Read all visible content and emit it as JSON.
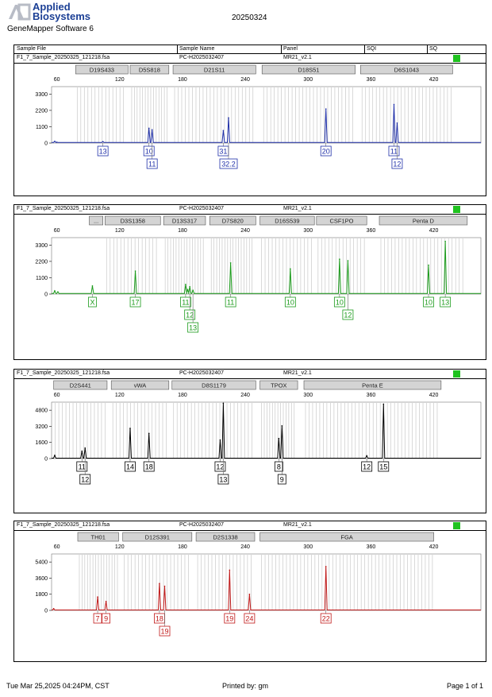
{
  "header": {
    "brand_line1": "Applied",
    "brand_line2": "Biosystems",
    "software": "GeneMapper Software 6",
    "date": "20250324"
  },
  "columns": {
    "sample_file": "Sample File",
    "sample_name": "Sample Name",
    "panel": "Panel",
    "sqi": "SQI",
    "sq": "SQ"
  },
  "footer": {
    "timestamp": "Tue Mar 25,2025 04:24PM, CST",
    "printed_by": "Printed by: gm",
    "page": "Page 1 of 1"
  },
  "chart_data": [
    {
      "type": "electropherogram",
      "sample_file": "F1_7_Sample_20250325_121218.fsa",
      "sample_name": "PC-H2025032407",
      "panel": "MR21_v2.1",
      "dye_color": "#1f2fa8",
      "x_ticks": [
        60,
        120,
        180,
        240,
        300,
        360,
        420
      ],
      "y_ticks": [
        0,
        1100,
        2200,
        3300
      ],
      "xlim": [
        55,
        465
      ],
      "ylim": [
        0,
        3800
      ],
      "markers": [
        {
          "name": "D19S433",
          "start": 78,
          "end": 128
        },
        {
          "name": "D5S818",
          "start": 130,
          "end": 167
        },
        {
          "name": "D21S11",
          "start": 171,
          "end": 250
        },
        {
          "name": "D18S51",
          "start": 256,
          "end": 345
        },
        {
          "name": "D6S1043",
          "start": 350,
          "end": 438
        }
      ],
      "peaks": [
        {
          "x": 58,
          "y": 120
        },
        {
          "x": 60,
          "y": 60
        },
        {
          "x": 104,
          "y": 100
        },
        {
          "x": 148,
          "y": 1000
        },
        {
          "x": 151,
          "y": 900
        },
        {
          "x": 219,
          "y": 850
        },
        {
          "x": 224,
          "y": 1700
        },
        {
          "x": 317,
          "y": 2300
        },
        {
          "x": 382,
          "y": 2600
        },
        {
          "x": 385,
          "y": 1350
        }
      ],
      "allele_calls": [
        {
          "label": "13",
          "x": 104,
          "row": 0
        },
        {
          "label": "10",
          "x": 148,
          "row": 0
        },
        {
          "label": "11",
          "x": 151,
          "row": 1
        },
        {
          "label": "31",
          "x": 219,
          "row": 0
        },
        {
          "label": "32.2",
          "x": 224,
          "row": 1
        },
        {
          "label": "20",
          "x": 317,
          "row": 0
        },
        {
          "label": "11",
          "x": 382,
          "row": 0
        },
        {
          "label": "12",
          "x": 385,
          "row": 1
        }
      ]
    },
    {
      "type": "electropherogram",
      "sample_file": "F1_7_Sample_20250325_121218.fsa",
      "sample_name": "PC-H2025032407",
      "panel": "MR21_v2.1",
      "dye_color": "#1a9a1a",
      "x_ticks": [
        60,
        120,
        180,
        240,
        300,
        360,
        420
      ],
      "y_ticks": [
        0,
        1100,
        2200,
        3300
      ],
      "xlim": [
        55,
        465
      ],
      "ylim": [
        0,
        3800
      ],
      "markers": [
        {
          "name": "...",
          "start": 91,
          "end": 104
        },
        {
          "name": "D3S1358",
          "start": 106,
          "end": 159
        },
        {
          "name": "D13S317",
          "start": 162,
          "end": 202
        },
        {
          "name": "D7S820",
          "start": 206,
          "end": 250
        },
        {
          "name": "D16S539",
          "start": 254,
          "end": 306
        },
        {
          "name": "CSF1PO",
          "start": 308,
          "end": 356
        },
        {
          "name": "Penta D",
          "start": 368,
          "end": 452
        }
      ],
      "peaks": [
        {
          "x": 58,
          "y": 220
        },
        {
          "x": 61,
          "y": 150
        },
        {
          "x": 94,
          "y": 550
        },
        {
          "x": 135,
          "y": 1550
        },
        {
          "x": 183,
          "y": 650
        },
        {
          "x": 185,
          "y": 300
        },
        {
          "x": 187,
          "y": 500
        },
        {
          "x": 190,
          "y": 250
        },
        {
          "x": 226,
          "y": 2100
        },
        {
          "x": 283,
          "y": 1700
        },
        {
          "x": 330,
          "y": 2350
        },
        {
          "x": 338,
          "y": 2250
        },
        {
          "x": 415,
          "y": 1950
        },
        {
          "x": 431,
          "y": 3550
        }
      ],
      "allele_calls": [
        {
          "label": "X",
          "x": 94,
          "row": 0
        },
        {
          "label": "17",
          "x": 135,
          "row": 0
        },
        {
          "label": "11",
          "x": 183,
          "row": 0
        },
        {
          "label": "12",
          "x": 187,
          "row": 1
        },
        {
          "label": "13",
          "x": 190,
          "row": 2
        },
        {
          "label": "11",
          "x": 226,
          "row": 0
        },
        {
          "label": "10",
          "x": 283,
          "row": 0
        },
        {
          "label": "10",
          "x": 330,
          "row": 0
        },
        {
          "label": "12",
          "x": 338,
          "row": 1
        },
        {
          "label": "10",
          "x": 415,
          "row": 0
        },
        {
          "label": "13",
          "x": 431,
          "row": 0
        }
      ]
    },
    {
      "type": "electropherogram",
      "sample_file": "F1_7_Sample_20250325_121218.fsa",
      "sample_name": "PC-H2025032407",
      "panel": "MR21_v2.1",
      "dye_color": "#000000",
      "x_ticks": [
        60,
        120,
        180,
        240,
        300,
        360,
        420
      ],
      "y_ticks": [
        0,
        1600,
        3200,
        4800
      ],
      "xlim": [
        55,
        465
      ],
      "ylim": [
        0,
        5600
      ],
      "markers": [
        {
          "name": "D2S441",
          "start": 57,
          "end": 108
        },
        {
          "name": "vWA",
          "start": 112,
          "end": 167
        },
        {
          "name": "D8S1179",
          "start": 170,
          "end": 250
        },
        {
          "name": "TPOX",
          "start": 254,
          "end": 290
        },
        {
          "name": "Penta E",
          "start": 296,
          "end": 427
        }
      ],
      "peaks": [
        {
          "x": 58,
          "y": 320
        },
        {
          "x": 84,
          "y": 750
        },
        {
          "x": 87,
          "y": 1050
        },
        {
          "x": 130,
          "y": 3000
        },
        {
          "x": 148,
          "y": 2500
        },
        {
          "x": 216,
          "y": 1850
        },
        {
          "x": 219,
          "y": 5500
        },
        {
          "x": 272,
          "y": 2000
        },
        {
          "x": 275,
          "y": 3250
        },
        {
          "x": 356,
          "y": 280
        },
        {
          "x": 372,
          "y": 5400
        }
      ],
      "allele_calls": [
        {
          "label": "11",
          "x": 84,
          "row": 0
        },
        {
          "label": "12",
          "x": 87,
          "row": 1
        },
        {
          "label": "14",
          "x": 130,
          "row": 0
        },
        {
          "label": "18",
          "x": 148,
          "row": 0
        },
        {
          "label": "12",
          "x": 216,
          "row": 0
        },
        {
          "label": "13",
          "x": 219,
          "row": 1
        },
        {
          "label": "8",
          "x": 272,
          "row": 0
        },
        {
          "label": "9",
          "x": 275,
          "row": 1
        },
        {
          "label": "12",
          "x": 356,
          "row": 0
        },
        {
          "label": "15",
          "x": 372,
          "row": 0
        }
      ]
    },
    {
      "type": "electropherogram",
      "sample_file": "F1_7_Sample_20250325_121218.fsa",
      "sample_name": "PC-H2025032407",
      "panel": "MR21_v2.1",
      "dye_color": "#c01818",
      "x_ticks": [
        60,
        120,
        180,
        240,
        300,
        360,
        420
      ],
      "y_ticks": [
        0,
        1800,
        3600,
        5400
      ],
      "xlim": [
        55,
        465
      ],
      "ylim": [
        0,
        6300
      ],
      "markers": [
        {
          "name": "TH01",
          "start": 80,
          "end": 119
        },
        {
          "name": "D12S391",
          "start": 123,
          "end": 189
        },
        {
          "name": "D2S1338",
          "start": 193,
          "end": 249
        },
        {
          "name": "FGA",
          "start": 254,
          "end": 420
        }
      ],
      "peaks": [
        {
          "x": 57,
          "y": 200
        },
        {
          "x": 99,
          "y": 1500
        },
        {
          "x": 107,
          "y": 1000
        },
        {
          "x": 158,
          "y": 3000
        },
        {
          "x": 163,
          "y": 2700
        },
        {
          "x": 225,
          "y": 4500
        },
        {
          "x": 244,
          "y": 1800
        },
        {
          "x": 317,
          "y": 4900
        }
      ],
      "allele_calls": [
        {
          "label": "7",
          "x": 99,
          "row": 0
        },
        {
          "label": "9",
          "x": 107,
          "row": 0
        },
        {
          "label": "18",
          "x": 158,
          "row": 0
        },
        {
          "label": "19",
          "x": 163,
          "row": 1
        },
        {
          "label": "19",
          "x": 225,
          "row": 0
        },
        {
          "label": "24",
          "x": 244,
          "row": 0
        },
        {
          "label": "22",
          "x": 317,
          "row": 0
        }
      ]
    }
  ]
}
